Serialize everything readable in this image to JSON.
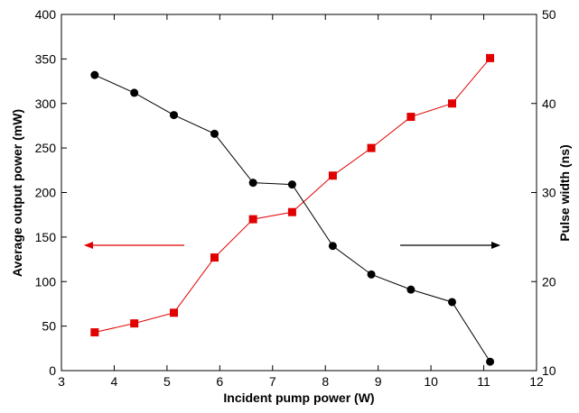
{
  "chart_data": {
    "type": "line",
    "xlabel": "Incident pump power (W)",
    "ylabel_left": "Average output power (mW)",
    "ylabel_right": "Pulse width (ns)",
    "xlim": [
      3,
      12
    ],
    "ylim_left": [
      0,
      400
    ],
    "ylim_right": [
      10,
      50
    ],
    "x_ticks": [
      3,
      4,
      5,
      6,
      7,
      8,
      9,
      10,
      11,
      12
    ],
    "y_left_ticks": [
      0,
      50,
      100,
      150,
      200,
      250,
      300,
      350,
      400
    ],
    "y_right_ticks": [
      10,
      20,
      30,
      40,
      50
    ],
    "grid": false,
    "series": [
      {
        "axis": "left",
        "color": "#e00000",
        "marker": "square",
        "x": [
          3.63,
          4.38,
          5.13,
          5.9,
          6.63,
          7.37,
          8.14,
          8.87,
          9.62,
          10.4,
          11.12
        ],
        "values": [
          43,
          53,
          65,
          127,
          170,
          178,
          219,
          250,
          285,
          300,
          351
        ]
      },
      {
        "axis": "right",
        "color": "#000000",
        "marker": "circle",
        "x": [
          3.63,
          4.38,
          5.13,
          5.9,
          6.63,
          7.37,
          8.14,
          8.87,
          9.62,
          10.4,
          11.12
        ],
        "values": [
          43.2,
          41.2,
          38.7,
          36.6,
          31.1,
          30.9,
          24.0,
          20.8,
          19.1,
          17.7,
          11.0
        ]
      }
    ],
    "annotations": [
      {
        "name": "left-arrow",
        "color": "#e00000",
        "direction": "left",
        "axis": "left"
      },
      {
        "name": "right-arrow",
        "color": "#000000",
        "direction": "right",
        "axis": "right"
      }
    ]
  }
}
